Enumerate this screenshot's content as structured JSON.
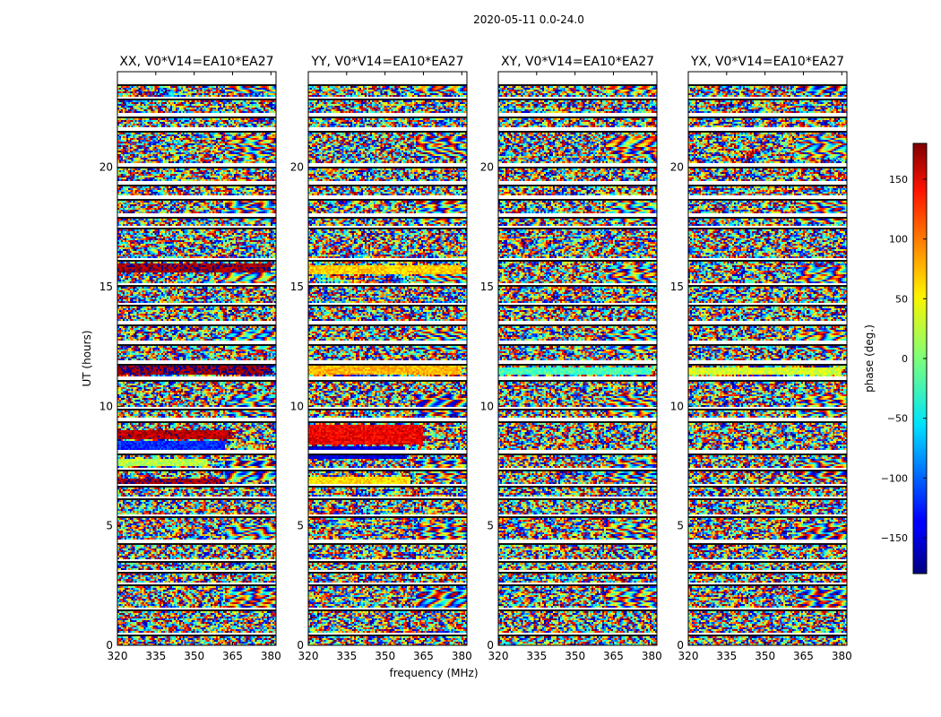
{
  "chart_data": {
    "type": "heatmap",
    "title": "2020-05-11 0.0-24.0",
    "xlabel": "frequency (MHz)",
    "ylabel": "UT (hours)",
    "xlim": [
      320,
      382
    ],
    "ylim": [
      0,
      24
    ],
    "xticks": [
      320,
      335,
      350,
      365,
      380
    ],
    "yticks": [
      0,
      5,
      10,
      15,
      20
    ],
    "colormap": "jet",
    "grid": false,
    "panels": [
      {
        "name": "XX, V0*V14=EA10*EA27",
        "seed": 11,
        "features": [
          {
            "t0": 15.6,
            "t1": 15.95,
            "phase": 170,
            "f1": 380
          },
          {
            "t0": 11.35,
            "t1": 11.7,
            "phase": 175,
            "f1": 380
          },
          {
            "t0": 8.6,
            "t1": 9.0,
            "phase": 160,
            "f1": 365
          },
          {
            "t0": 8.0,
            "t1": 8.55,
            "phase": -120,
            "f1": 362
          },
          {
            "t0": 6.75,
            "t1": 7.0,
            "phase": 170,
            "f1": 362
          },
          {
            "t0": 7.5,
            "t1": 7.8,
            "phase": 20,
            "f1": 355
          }
        ]
      },
      {
        "name": "YY, V0*V14=EA10*EA27",
        "seed": 23,
        "features": [
          {
            "t0": 15.55,
            "t1": 15.9,
            "phase": 60,
            "f1": 380
          },
          {
            "t0": 11.35,
            "t1": 11.7,
            "phase": 70,
            "f1": 380
          },
          {
            "t0": 8.4,
            "t1": 9.2,
            "phase": 140,
            "f1": 365
          },
          {
            "t0": 7.8,
            "t1": 8.35,
            "phase": -150,
            "f1": 358
          },
          {
            "t0": 6.7,
            "t1": 7.05,
            "phase": 55,
            "f1": 360
          }
        ]
      },
      {
        "name": "XY, V0*V14=EA10*EA27",
        "seed": 37,
        "features": [
          {
            "t0": 11.35,
            "t1": 11.65,
            "phase": -20,
            "f1": 380
          }
        ]
      },
      {
        "name": "YX, V0*V14=EA10*EA27",
        "seed": 51,
        "features": [
          {
            "t0": 11.35,
            "t1": 11.65,
            "phase": 30,
            "f1": 380
          }
        ]
      }
    ],
    "gaps": [
      [
        23.45,
        24.0
      ],
      [
        22.85,
        22.95
      ],
      [
        22.15,
        22.25
      ],
      [
        21.55,
        21.65
      ],
      [
        20.05,
        20.15
      ],
      [
        19.3,
        19.4
      ],
      [
        18.7,
        18.85
      ],
      [
        17.95,
        18.1
      ],
      [
        17.45,
        17.55
      ],
      [
        16.1,
        16.2
      ],
      [
        15.05,
        15.15
      ],
      [
        14.25,
        14.35
      ],
      [
        13.45,
        13.55
      ],
      [
        12.6,
        12.75
      ],
      [
        11.8,
        11.95
      ],
      [
        11.1,
        11.25
      ],
      [
        9.9,
        10.0
      ],
      [
        9.35,
        9.5
      ],
      [
        8.05,
        8.15
      ],
      [
        7.35,
        7.45
      ],
      [
        6.65,
        6.75
      ],
      [
        6.15,
        6.25
      ],
      [
        5.4,
        5.5
      ],
      [
        4.25,
        4.45
      ],
      [
        3.5,
        3.6
      ],
      [
        3.05,
        3.15
      ],
      [
        2.55,
        2.65
      ],
      [
        1.5,
        1.6
      ],
      [
        0.45,
        0.55
      ]
    ],
    "colorbar": {
      "label": "phase (deg.)",
      "range": [
        -180,
        180
      ],
      "ticks": [
        150,
        100,
        50,
        0,
        -50,
        -100,
        -150
      ],
      "tick_labels": [
        "150",
        "100",
        "50",
        "0",
        "−50",
        "−100",
        "−150"
      ]
    }
  }
}
